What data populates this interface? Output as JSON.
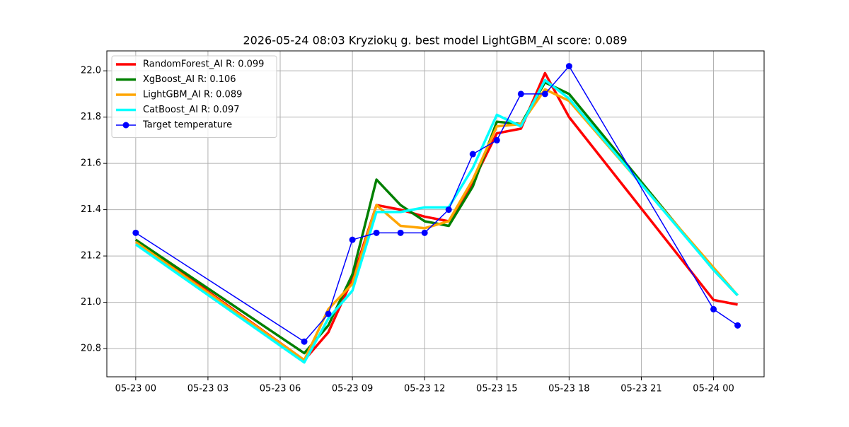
{
  "chart_data": {
    "type": "line",
    "title": "2026-05-24 08:03 Kryziokų g. best model LightGBM_AI score: 0.089",
    "x": [
      "05-23 00",
      "05-23 07",
      "05-23 08",
      "05-23 09",
      "05-23 10",
      "05-23 11",
      "05-23 12",
      "05-23 13",
      "05-23 14",
      "05-23 15",
      "05-23 16",
      "05-23 17",
      "05-23 18",
      "05-24 00",
      "05-24 01"
    ],
    "series": [
      {
        "name": "RandomForest_AI R: 0.099",
        "color": "#ff0000",
        "values": [
          21.27,
          20.75,
          20.87,
          21.1,
          21.42,
          21.4,
          21.37,
          21.35,
          21.52,
          21.73,
          21.75,
          21.99,
          21.8,
          21.01,
          20.99
        ]
      },
      {
        "name": "XgBoost_AI R: 0.106",
        "color": "#008000",
        "values": [
          21.27,
          20.78,
          20.9,
          21.12,
          21.53,
          21.42,
          21.35,
          21.33,
          21.5,
          21.78,
          21.77,
          21.95,
          21.9,
          21.14,
          21.03
        ]
      },
      {
        "name": "LightGBM_AI R: 0.089",
        "color": "#ffa500",
        "values": [
          21.26,
          20.75,
          20.97,
          21.08,
          21.42,
          21.33,
          21.32,
          21.35,
          21.53,
          21.76,
          21.77,
          21.92,
          21.87,
          21.15,
          21.03
        ]
      },
      {
        "name": "CatBoost_AI R: 0.097",
        "color": "#00ffff",
        "values": [
          21.25,
          20.74,
          20.93,
          21.05,
          21.39,
          21.39,
          21.41,
          21.41,
          21.58,
          21.81,
          21.76,
          21.96,
          21.88,
          21.14,
          21.03
        ]
      },
      {
        "name": "Target temperature",
        "color": "#0000ff",
        "marker": "circle",
        "values": [
          21.3,
          20.83,
          20.95,
          21.27,
          21.3,
          21.3,
          21.3,
          21.4,
          21.64,
          21.7,
          21.9,
          21.9,
          22.02,
          20.97,
          20.9
        ]
      }
    ],
    "xlim": [
      "05-22 22:48",
      "05-24 02:06"
    ],
    "xticks": [
      "05-23 00",
      "05-23 03",
      "05-23 06",
      "05-23 09",
      "05-23 12",
      "05-23 15",
      "05-23 18",
      "05-23 21",
      "05-24 00"
    ],
    "ylim": [
      20.678,
      22.086
    ],
    "yticks": [
      20.8,
      {
        "value": 21.0,
        "label": "21.0"
      },
      21.2,
      21.4,
      21.6,
      21.8,
      {
        "value": 22.0,
        "label": "22.0"
      }
    ],
    "grid": true,
    "legend": "upper left"
  }
}
